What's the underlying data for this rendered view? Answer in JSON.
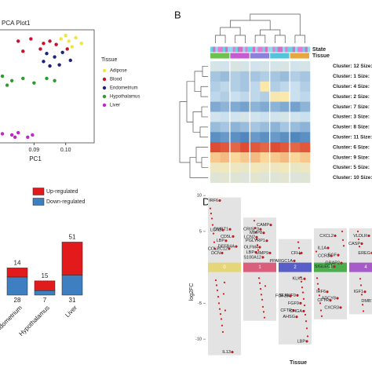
{
  "chart_data": [
    {
      "type": "scatter",
      "title": "PCA Plot1",
      "x_label": "PC1",
      "legend_title": "Tissue",
      "xlim": [
        0.079,
        0.109
      ],
      "xticks": [
        0.09,
        {
          "value": 0.1,
          "label": "0.10"
        }
      ],
      "ylim": [
        0,
        1
      ],
      "series": [
        {
          "name": "Adipose",
          "color": "#f0e442",
          "x": [
            0.0985,
            0.101,
            0.1032,
            0.105,
            0.102,
            0.1
          ],
          "values": [
            0.92,
            0.9,
            0.93,
            0.88,
            0.85,
            0.95
          ]
        },
        {
          "name": "Blood",
          "color": "#c8102e",
          "x": [
            0.085,
            0.089,
            0.093,
            0.095,
            0.097,
            0.092,
            0.0865,
            0.1005
          ],
          "values": [
            0.9,
            0.92,
            0.88,
            0.9,
            0.87,
            0.83,
            0.81,
            0.83
          ]
        },
        {
          "name": "Endometrium",
          "color": "#1a237e",
          "x": [
            0.094,
            0.0965,
            0.099,
            0.1015,
            0.098,
            0.093,
            0.095
          ],
          "values": [
            0.79,
            0.76,
            0.8,
            0.73,
            0.69,
            0.72,
            0.68
          ]
        },
        {
          "name": "Hypothalamus",
          "color": "#2e9b2e",
          "x": [
            0.08,
            0.083,
            0.0865,
            0.09,
            0.094,
            0.0965,
            0.0815
          ],
          "values": [
            0.59,
            0.55,
            0.57,
            0.53,
            0.57,
            0.55,
            0.51
          ]
        },
        {
          "name": "Liver",
          "color": "#c026c8",
          "x": [
            0.08,
            0.083,
            0.085,
            0.088,
            0.0895,
            0.084
          ],
          "values": [
            0.08,
            0.07,
            0.09,
            0.05,
            0.07,
            0.05
          ]
        }
      ]
    },
    {
      "type": "heatmap",
      "panel": "B",
      "annotation_labels": [
        "State",
        "Tissue"
      ],
      "tissue_colors": [
        "#6cc24a",
        "#c65bd1",
        "#8c82dc",
        "#52c6d8",
        "#e8a73a"
      ],
      "colorscale": [
        "#2b6cb0",
        "#cfe3f0",
        "#fde8a6",
        "#d7301f"
      ],
      "zlim": [
        -2,
        2
      ],
      "rows": [
        {
          "label": "Cluster: 12 Size:",
          "values": [
            -0.5,
            -0.6,
            -0.4,
            -0.5,
            -0.6,
            -0.5,
            -0.5,
            -0.4,
            -0.6,
            -0.5
          ]
        },
        {
          "label": "Cluster: 1 Size:",
          "values": [
            -1,
            -1.1,
            -0.9,
            -1,
            -1,
            -0.9,
            -1,
            -1.1,
            -0.9,
            -1
          ]
        },
        {
          "label": "Cluster: 4 Size:",
          "values": [
            -0.9,
            -0.8,
            -0.9,
            -1,
            -0.8,
            0.6,
            -0.9,
            -0.8,
            -0.7,
            -0.9
          ]
        },
        {
          "label": "Cluster: 2 Size:",
          "values": [
            -0.8,
            -0.9,
            -0.7,
            -0.8,
            -0.8,
            -0.9,
            0.5,
            0.6,
            -0.7,
            -0.8
          ]
        },
        {
          "label": "Cluster: 7 Size:",
          "values": [
            -1.3,
            -1.2,
            -1.3,
            -1.4,
            -1.2,
            -1.3,
            -1.2,
            -1.3,
            -1.4,
            -1.2
          ]
        },
        {
          "label": "Cluster: 3 Size:",
          "values": [
            -0.6,
            -0.7,
            -0.6,
            -0.5,
            -0.6,
            -0.7,
            -0.6,
            -0.5,
            -0.6,
            -0.7
          ]
        },
        {
          "label": "Cluster: 8 Size:",
          "values": [
            -1.1,
            -1,
            -1.2,
            -1.1,
            -1,
            -1.1,
            -1.2,
            -1,
            -1.1,
            -1.2
          ]
        },
        {
          "label": "Cluster: 11 Size:",
          "values": [
            -1.6,
            -1.5,
            -1.6,
            -1.7,
            -1.5,
            -1.6,
            -1.5,
            -1.6,
            -1.7,
            -1.6
          ]
        },
        {
          "label": "Cluster: 6 Size:",
          "values": [
            1.8,
            1.7,
            1.6,
            1.8,
            1.7,
            1.6,
            1.8,
            1.7,
            1.6,
            1.7
          ]
        },
        {
          "label": "Cluster: 9 Size:",
          "values": [
            0.9,
            1,
            0.8,
            0.9,
            1,
            0.8,
            0.9,
            1,
            0.8,
            0.9
          ]
        },
        {
          "label": "Cluster: 5 Size:",
          "values": [
            0.2,
            0.3,
            0.2,
            0.1,
            0.3,
            0.2,
            0.2,
            0.3,
            0.1,
            0.2
          ]
        },
        {
          "label": "Cluster: 10 Size:",
          "values": [
            -0.2,
            -0.1,
            -0.2,
            -0.3,
            -0.1,
            -0.2,
            -0.2,
            -0.1,
            -0.3,
            -0.2
          ]
        }
      ]
    },
    {
      "type": "stacked_bar",
      "categories": [
        "Endometrium",
        "Hypothalamus",
        "Liver"
      ],
      "ylim": [
        0,
        85
      ],
      "series": [
        {
          "name": "Up-regulated",
          "color": "#e31a1c",
          "values": [
            14,
            15,
            51
          ]
        },
        {
          "name": "Down-regulated",
          "color": "#3d7fc1",
          "values": [
            28,
            7,
            31
          ]
        }
      ]
    },
    {
      "type": "strip",
      "panel": "D",
      "y_label": "log2FC",
      "x_label": "Tissue",
      "ylim": [
        -12.5,
        11
      ],
      "yticks": [
        10,
        5,
        -5,
        -10
      ],
      "categories": [
        "0",
        "1",
        "2",
        "3",
        "4"
      ],
      "category_colors": [
        "#e6d67a",
        "#d95f7d",
        "#5a5fc8",
        "#4cae4f",
        "#a65bc9"
      ],
      "point_color": "#d7191c",
      "values": [
        [
          8.2,
          7.5,
          6.8,
          5.9,
          4.7,
          3.5,
          2.6,
          -1.8,
          -2.5,
          -3.2,
          -4.1,
          -5.0,
          -5.8,
          -6.5,
          -7.2,
          -8.1,
          -9.0,
          -3.7,
          -2.1,
          -6.0
        ],
        [
          6.5,
          5.5,
          4.9,
          3.9,
          3.1,
          2.4,
          -1.5,
          -2.2,
          -3.0,
          -3.8,
          -4.5,
          -5.5,
          -6.2,
          -7.0,
          -2.6
        ],
        [
          3.5,
          2.7,
          1.9,
          -1.4,
          -2.0,
          -2.8,
          -3.5,
          -4.4,
          -5.3,
          -6.6,
          -7.5,
          -8.5,
          -9.6
        ],
        [
          5.0,
          3.8,
          3.0,
          2.2,
          -1.5,
          -2.3,
          -3.0,
          -3.9,
          -5.0,
          -6.0,
          -6.8
        ],
        [
          5.0,
          3.9,
          2.9,
          -1.6,
          -2.5,
          -3.8,
          -5.2,
          -6.1
        ]
      ],
      "genes": [
        {
          "cluster": 0,
          "value": 9.3,
          "label": "IRF6"
        },
        {
          "cluster": 0,
          "value": 5.3,
          "label": "DMBT1"
        },
        {
          "cluster": 0,
          "value": 5.2,
          "label": "LCN2"
        },
        {
          "cluster": 0,
          "value": 4.3,
          "label": "CD5L"
        },
        {
          "cluster": 0,
          "value": 3.7,
          "label": "LBP"
        },
        {
          "cluster": 0,
          "value": 2.9,
          "label": "DEFB4A"
        },
        {
          "cluster": 0,
          "value": 2.6,
          "label": "COLEC12"
        },
        {
          "cluster": 0,
          "value": 2.0,
          "label": "DCN"
        },
        {
          "cluster": 0,
          "value": -11.8,
          "label": "IL13"
        },
        {
          "cluster": 1,
          "value": 5.3,
          "label": "CRISP3"
        },
        {
          "cluster": 1,
          "value": 5.9,
          "label": "CAMP"
        },
        {
          "cluster": 1,
          "value": 4.8,
          "label": "MMP8"
        },
        {
          "cluster": 1,
          "value": 4.2,
          "label": "LCN2"
        },
        {
          "cluster": 1,
          "value": 3.7,
          "label": "PGLYRP1"
        },
        {
          "cluster": 1,
          "value": 2.8,
          "label": "OLFM4"
        },
        {
          "cluster": 1,
          "value": 2.0,
          "label": "MMP9"
        },
        {
          "cluster": 1,
          "value": 1.4,
          "label": "S100A12"
        },
        {
          "cluster": 1,
          "value": 2.1,
          "label": "LBP"
        },
        {
          "cluster": 2,
          "value": 2.0,
          "label": "CFH"
        },
        {
          "cluster": 2,
          "value": 0.9,
          "label": "PPARGC1A"
        },
        {
          "cluster": 2,
          "value": -1.6,
          "label": "KLK1"
        },
        {
          "cluster": 2,
          "value": -3.9,
          "label": "SLAMF9"
        },
        {
          "cluster": 2,
          "value": -4.0,
          "label": "FGF18"
        },
        {
          "cluster": 2,
          "value": -5.0,
          "label": "FGF9"
        },
        {
          "cluster": 2,
          "value": -6.0,
          "label": "CFTR"
        },
        {
          "cluster": 2,
          "value": -6.1,
          "label": "CHGA"
        },
        {
          "cluster": 2,
          "value": -6.9,
          "label": "AHSG"
        },
        {
          "cluster": 2,
          "value": -10.3,
          "label": "LBP"
        },
        {
          "cluster": 3,
          "value": 4.4,
          "label": "CXCL2"
        },
        {
          "cluster": 3,
          "value": 2.7,
          "label": "IL1A"
        },
        {
          "cluster": 3,
          "value": 1.7,
          "label": "EGF"
        },
        {
          "cluster": 3,
          "value": 1.6,
          "label": "CCR3"
        },
        {
          "cluster": 3,
          "value": 0.6,
          "label": "GRAP2"
        },
        {
          "cluster": 3,
          "value": 0.1,
          "label": "SIGLEC1"
        },
        {
          "cluster": 3,
          "value": -3.4,
          "label": "IRF6"
        },
        {
          "cluster": 3,
          "value": -4.3,
          "label": "ADCY8"
        },
        {
          "cluster": 3,
          "value": -4.6,
          "label": "CFTR"
        },
        {
          "cluster": 3,
          "value": -5.6,
          "label": "CXCR3"
        },
        {
          "cluster": 4,
          "value": 4.4,
          "label": "VLDLR"
        },
        {
          "cluster": 4,
          "value": 3.3,
          "label": "CASP"
        },
        {
          "cluster": 4,
          "value": 2.0,
          "label": "EREG"
        },
        {
          "cluster": 4,
          "value": -3.4,
          "label": "IGF1"
        },
        {
          "cluster": 4,
          "value": -4.7,
          "label": "DMBT"
        }
      ]
    }
  ]
}
